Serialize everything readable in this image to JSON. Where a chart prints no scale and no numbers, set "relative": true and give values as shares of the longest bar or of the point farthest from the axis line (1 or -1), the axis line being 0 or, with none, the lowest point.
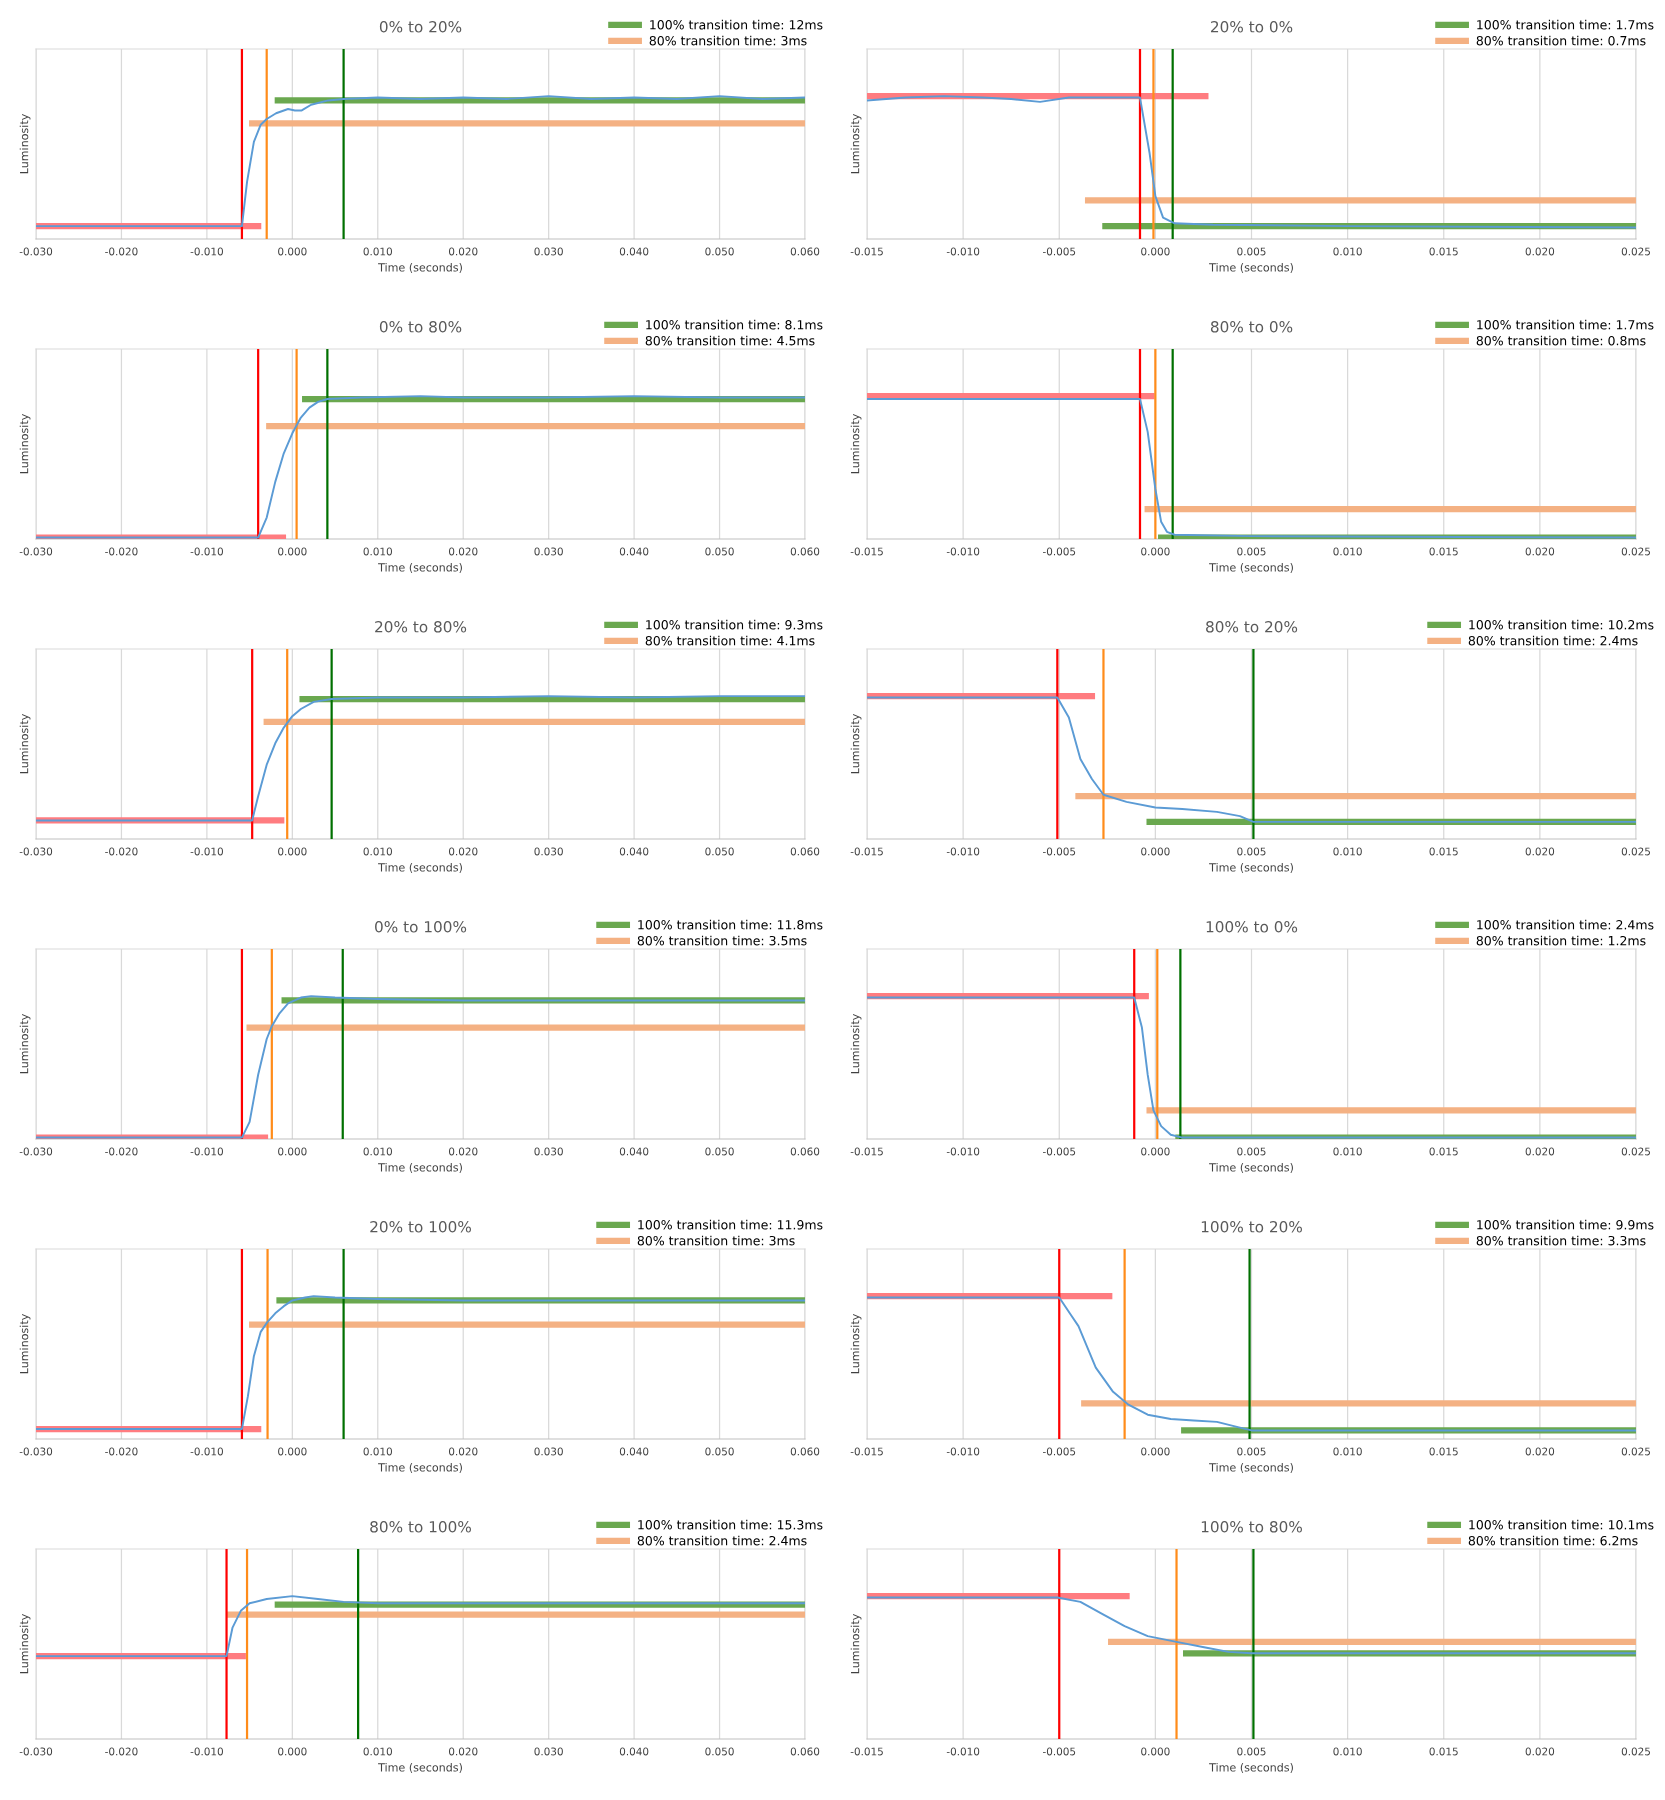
{
  "chart_data": [
    {
      "type": "line",
      "title": "0% to 20%",
      "xlabel": "Time (seconds)",
      "ylabel": "Luminosity",
      "relative": true,
      "grid": true,
      "legend": "top right",
      "xlim": [
        -0.03,
        0.06
      ],
      "xticks": [
        {
          "value": -0.03,
          "label": "-0.030"
        },
        {
          "value": -0.02,
          "label": "-0.020"
        },
        {
          "value": -0.01,
          "label": "-0.010"
        },
        {
          "value": 0,
          "label": "0.000"
        },
        {
          "value": 0.01,
          "label": "0.010"
        },
        {
          "value": 0.02,
          "label": "0.020"
        },
        {
          "value": 0.03,
          "label": "0.030"
        },
        {
          "value": 0.04,
          "label": "0.040"
        },
        {
          "value": 0.05,
          "label": "0.050"
        },
        {
          "value": 0.06,
          "label": "0.060"
        }
      ],
      "series": [
        {
          "color": "#ff7c80",
          "x": [
            -0.03,
            -0.004
          ],
          "values": [
            0.09,
            0.09
          ]
        },
        {
          "name": "100% transition time: 12ms",
          "color": "#6aa84f",
          "x": [
            -0.0017,
            0.06
          ],
          "values": [
            0.97,
            0.97
          ]
        },
        {
          "name": "80% transition time: 3ms",
          "color": "#f4b183",
          "x": [
            -0.0047,
            0.06
          ],
          "values": [
            0.81,
            0.81
          ]
        },
        {
          "color": "#5b9bd5",
          "x": [
            -0.03,
            -0.0059,
            -0.0053,
            -0.0045,
            -0.0037,
            -0.003,
            -0.0019,
            -0.0005,
            0.0003,
            0.0011,
            0.0022,
            0.0042,
            0.006,
            0.01,
            0.015,
            0.02,
            0.025,
            0.03,
            0.035,
            0.04,
            0.045,
            0.05,
            0.055,
            0.06
          ],
          "values": [
            0.09,
            0.09,
            0.4,
            0.68,
            0.8,
            0.84,
            0.88,
            0.91,
            0.9,
            0.9,
            0.94,
            0.97,
            0.98,
            0.99,
            0.98,
            0.99,
            0.98,
            1.0,
            0.98,
            0.99,
            0.98,
            1.0,
            0.98,
            0.99
          ]
        }
      ],
      "ref_lines": [
        {
          "axis": "x",
          "value": -0.0059,
          "color": "#ff0000"
        },
        {
          "axis": "x",
          "value": -0.003,
          "color": "#ff8c1a"
        },
        {
          "axis": "x",
          "value": 0.006,
          "color": "#007000"
        }
      ]
    },
    {
      "type": "line",
      "title": "20% to 0%",
      "xlabel": "Time (seconds)",
      "ylabel": "Luminosity",
      "relative": true,
      "grid": true,
      "legend": "top right",
      "xlim": [
        -0.015,
        0.025
      ],
      "xticks": [
        {
          "value": -0.015,
          "label": "-0.015"
        },
        {
          "value": -0.01,
          "label": "-0.010"
        },
        {
          "value": -0.005,
          "label": "-0.005"
        },
        {
          "value": 0,
          "label": "0.000"
        },
        {
          "value": 0.005,
          "label": "0.005"
        },
        {
          "value": 0.01,
          "label": "0.010"
        },
        {
          "value": 0.015,
          "label": "0.015"
        },
        {
          "value": 0.02,
          "label": "0.020"
        },
        {
          "value": 0.025,
          "label": "0.025"
        }
      ],
      "series": [
        {
          "color": "#ff7c80",
          "x": [
            -0.015,
            0.0026
          ],
          "values": [
            1.0,
            1.0
          ]
        },
        {
          "name": "100% transition time: 1.7ms",
          "color": "#6aa84f",
          "x": [
            -0.0026,
            0.025
          ],
          "values": [
            0.09,
            0.09
          ]
        },
        {
          "name": "80% transition time: 0.7ms",
          "color": "#f4b183",
          "x": [
            -0.0035,
            0.025
          ],
          "values": [
            0.27,
            0.27
          ]
        },
        {
          "color": "#5b9bd5",
          "x": [
            -0.015,
            -0.013,
            -0.011,
            -0.009,
            -0.0075,
            -0.006,
            -0.0045,
            -0.003,
            -0.0008,
            -0.0003,
            0.0,
            0.0004,
            0.001,
            0.003,
            0.01,
            0.025
          ],
          "values": [
            0.97,
            0.99,
            1.0,
            0.99,
            0.98,
            0.96,
            0.99,
            0.99,
            0.99,
            0.6,
            0.3,
            0.15,
            0.11,
            0.1,
            0.09,
            0.08
          ]
        }
      ],
      "ref_lines": [
        {
          "axis": "x",
          "value": -0.0008,
          "color": "#ff0000"
        },
        {
          "axis": "x",
          "value": -0.0001,
          "color": "#ff8c1a"
        },
        {
          "axis": "x",
          "value": 0.0009,
          "color": "#007000"
        }
      ]
    },
    {
      "type": "line",
      "title": "0% to 80%",
      "xlabel": "Time (seconds)",
      "ylabel": "Luminosity",
      "relative": true,
      "grid": true,
      "legend": "top right",
      "xlim": [
        -0.03,
        0.06
      ],
      "xticks": [
        {
          "value": -0.03,
          "label": "-0.030"
        },
        {
          "value": -0.02,
          "label": "-0.020"
        },
        {
          "value": -0.01,
          "label": "-0.010"
        },
        {
          "value": 0,
          "label": "0.000"
        },
        {
          "value": 0.01,
          "label": "0.010"
        },
        {
          "value": 0.02,
          "label": "0.020"
        },
        {
          "value": 0.03,
          "label": "0.030"
        },
        {
          "value": 0.04,
          "label": "0.040"
        },
        {
          "value": 0.05,
          "label": "0.050"
        },
        {
          "value": 0.06,
          "label": "0.060"
        }
      ],
      "series": [
        {
          "color": "#ff7c80",
          "x": [
            -0.03,
            -0.0011
          ],
          "values": [
            0.01,
            0.01
          ]
        },
        {
          "name": "100% transition time: 8.1ms",
          "color": "#6aa84f",
          "x": [
            0.0015,
            0.06
          ],
          "values": [
            0.98,
            0.98
          ]
        },
        {
          "name": "80% transition time: 4.5ms",
          "color": "#f4b183",
          "x": [
            -0.0027,
            0.06
          ],
          "values": [
            0.79,
            0.79
          ]
        },
        {
          "color": "#5b9bd5",
          "x": [
            -0.03,
            -0.004,
            -0.003,
            -0.002,
            -0.001,
            0.0,
            0.001,
            0.002,
            0.003,
            0.0041,
            0.008,
            0.015,
            0.02,
            0.03,
            0.04,
            0.05,
            0.06
          ],
          "values": [
            0.01,
            0.01,
            0.15,
            0.4,
            0.6,
            0.74,
            0.85,
            0.92,
            0.96,
            0.98,
            0.99,
            1.0,
            0.99,
            0.99,
            1.0,
            0.99,
            0.99
          ]
        }
      ],
      "ref_lines": [
        {
          "axis": "x",
          "value": -0.004,
          "color": "#ff0000"
        },
        {
          "axis": "x",
          "value": 0.0005,
          "color": "#ff8c1a"
        },
        {
          "axis": "x",
          "value": 0.0041,
          "color": "#007000"
        }
      ]
    },
    {
      "type": "line",
      "title": "80% to 0%",
      "xlabel": "Time (seconds)",
      "ylabel": "Luminosity",
      "relative": true,
      "grid": true,
      "legend": "top right",
      "xlim": [
        -0.015,
        0.025
      ],
      "xticks": [
        {
          "value": -0.015,
          "label": "-0.015"
        },
        {
          "value": -0.01,
          "label": "-0.010"
        },
        {
          "value": -0.005,
          "label": "-0.005"
        },
        {
          "value": 0,
          "label": "0.000"
        },
        {
          "value": 0.005,
          "label": "0.005"
        },
        {
          "value": 0.01,
          "label": "0.010"
        },
        {
          "value": 0.015,
          "label": "0.015"
        },
        {
          "value": 0.02,
          "label": "0.020"
        },
        {
          "value": 0.025,
          "label": "0.025"
        }
      ],
      "series": [
        {
          "color": "#ff7c80",
          "x": [
            -0.015,
            -0.0002
          ],
          "values": [
            1.0,
            1.0
          ]
        },
        {
          "name": "100% transition time: 1.7ms",
          "color": "#6aa84f",
          "x": [
            0.0003,
            0.025
          ],
          "values": [
            0.01,
            0.01
          ]
        },
        {
          "name": "80% transition time: 0.8ms",
          "color": "#f4b183",
          "x": [
            -0.0004,
            0.025
          ],
          "values": [
            0.21,
            0.21
          ]
        },
        {
          "color": "#5b9bd5",
          "x": [
            -0.015,
            -0.01,
            -0.005,
            -0.0008,
            -0.0004,
            0.0,
            0.0003,
            0.0006,
            0.001,
            0.005,
            0.025
          ],
          "values": [
            0.98,
            0.98,
            0.98,
            0.98,
            0.75,
            0.35,
            0.12,
            0.05,
            0.03,
            0.02,
            0.01
          ]
        }
      ],
      "ref_lines": [
        {
          "axis": "x",
          "value": -0.0008,
          "color": "#ff0000"
        },
        {
          "axis": "x",
          "value": 0.0,
          "color": "#ff8c1a"
        },
        {
          "axis": "x",
          "value": 0.0009,
          "color": "#007000"
        }
      ]
    },
    {
      "type": "line",
      "title": "20% to 80%",
      "xlabel": "Time (seconds)",
      "ylabel": "Luminosity",
      "relative": true,
      "grid": true,
      "legend": "top right",
      "xlim": [
        -0.03,
        0.06
      ],
      "xticks": [
        {
          "value": -0.03,
          "label": "-0.030"
        },
        {
          "value": -0.02,
          "label": "-0.020"
        },
        {
          "value": -0.01,
          "label": "-0.010"
        },
        {
          "value": 0,
          "label": "0.000"
        },
        {
          "value": 0.01,
          "label": "0.010"
        },
        {
          "value": 0.02,
          "label": "0.020"
        },
        {
          "value": 0.03,
          "label": "0.030"
        },
        {
          "value": 0.04,
          "label": "0.040"
        },
        {
          "value": 0.05,
          "label": "0.050"
        },
        {
          "value": 0.06,
          "label": "0.060"
        }
      ],
      "series": [
        {
          "color": "#ff7c80",
          "x": [
            -0.03,
            -0.0013
          ],
          "values": [
            0.13,
            0.13
          ]
        },
        {
          "name": "100% transition time: 9.3ms",
          "color": "#6aa84f",
          "x": [
            0.0012,
            0.06
          ],
          "values": [
            0.98,
            0.98
          ]
        },
        {
          "name": "80% transition time: 4.1ms",
          "color": "#f4b183",
          "x": [
            -0.003,
            0.06
          ],
          "values": [
            0.82,
            0.82
          ]
        },
        {
          "color": "#5b9bd5",
          "x": [
            -0.03,
            -0.0047,
            -0.004,
            -0.003,
            -0.002,
            -0.001,
            0.0,
            0.001,
            0.0025,
            0.0046,
            0.01,
            0.02,
            0.03,
            0.04,
            0.05,
            0.06
          ],
          "values": [
            0.13,
            0.13,
            0.3,
            0.52,
            0.67,
            0.78,
            0.86,
            0.91,
            0.96,
            0.98,
            0.99,
            0.99,
            1.0,
            0.99,
            1.0,
            1.0
          ]
        }
      ],
      "ref_lines": [
        {
          "axis": "x",
          "value": -0.0047,
          "color": "#ff0000"
        },
        {
          "axis": "x",
          "value": -0.0006,
          "color": "#ff8c1a"
        },
        {
          "axis": "x",
          "value": 0.0046,
          "color": "#007000"
        }
      ]
    },
    {
      "type": "line",
      "title": "80% to 20%",
      "xlabel": "Time (seconds)",
      "ylabel": "Luminosity",
      "relative": true,
      "grid": true,
      "legend": "top right",
      "xlim": [
        -0.015,
        0.025
      ],
      "xticks": [
        {
          "value": -0.015,
          "label": "-0.015"
        },
        {
          "value": -0.01,
          "label": "-0.010"
        },
        {
          "value": -0.005,
          "label": "-0.005"
        },
        {
          "value": 0,
          "label": "0.000"
        },
        {
          "value": 0.005,
          "label": "0.005"
        },
        {
          "value": 0.01,
          "label": "0.010"
        },
        {
          "value": 0.015,
          "label": "0.015"
        },
        {
          "value": 0.02,
          "label": "0.020"
        },
        {
          "value": 0.025,
          "label": "0.025"
        }
      ],
      "series": [
        {
          "color": "#ff7c80",
          "x": [
            -0.015,
            -0.0033
          ],
          "values": [
            1.0,
            1.0
          ]
        },
        {
          "name": "100% transition time: 10.2ms",
          "color": "#6aa84f",
          "x": [
            -0.0003,
            0.025
          ],
          "values": [
            0.12,
            0.12
          ]
        },
        {
          "name": "80% transition time: 2.4ms",
          "color": "#f4b183",
          "x": [
            -0.004,
            0.025
          ],
          "values": [
            0.3,
            0.3
          ]
        },
        {
          "color": "#5b9bd5",
          "x": [
            -0.015,
            -0.01,
            -0.0051,
            -0.0045,
            -0.0039,
            -0.0033,
            -0.0027,
            -0.0015,
            0.0,
            0.0014,
            0.0032,
            0.0044,
            0.0051,
            0.01,
            0.025
          ],
          "values": [
            0.99,
            0.99,
            0.99,
            0.85,
            0.56,
            0.42,
            0.31,
            0.26,
            0.22,
            0.21,
            0.19,
            0.16,
            0.12,
            0.12,
            0.12
          ]
        }
      ],
      "ref_lines": [
        {
          "axis": "x",
          "value": -0.0051,
          "color": "#ff0000"
        },
        {
          "axis": "x",
          "value": -0.0027,
          "color": "#ff8c1a"
        },
        {
          "axis": "x",
          "value": 0.0051,
          "color": "#007000"
        }
      ]
    },
    {
      "type": "line",
      "title": "0% to 100%",
      "xlabel": "Time (seconds)",
      "ylabel": "Luminosity",
      "relative": true,
      "grid": true,
      "legend": "top right",
      "xlim": [
        -0.03,
        0.06
      ],
      "xticks": [
        {
          "value": -0.03,
          "label": "-0.030"
        },
        {
          "value": -0.02,
          "label": "-0.020"
        },
        {
          "value": -0.01,
          "label": "-0.010"
        },
        {
          "value": 0,
          "label": "0.000"
        },
        {
          "value": 0.01,
          "label": "0.010"
        },
        {
          "value": 0.02,
          "label": "0.020"
        },
        {
          "value": 0.03,
          "label": "0.030"
        },
        {
          "value": 0.04,
          "label": "0.040"
        },
        {
          "value": 0.05,
          "label": "0.050"
        },
        {
          "value": 0.06,
          "label": "0.060"
        }
      ],
      "series": [
        {
          "color": "#ff7c80",
          "x": [
            -0.03,
            -0.0032
          ],
          "values": [
            0.01,
            0.01
          ]
        },
        {
          "name": "100% transition time: 11.8ms",
          "color": "#6aa84f",
          "x": [
            -0.0009,
            0.06
          ],
          "values": [
            0.97,
            0.97
          ]
        },
        {
          "name": "80% transition time: 3.5ms",
          "color": "#f4b183",
          "x": [
            -0.005,
            0.06
          ],
          "values": [
            0.78,
            0.78
          ]
        },
        {
          "color": "#5b9bd5",
          "x": [
            -0.03,
            -0.0059,
            -0.005,
            -0.004,
            -0.003,
            -0.0024,
            -0.0015,
            -0.0005,
            0.001,
            0.0022,
            0.005,
            0.01,
            0.02,
            0.03,
            0.04,
            0.05,
            0.06
          ],
          "values": [
            0.01,
            0.01,
            0.12,
            0.45,
            0.7,
            0.79,
            0.88,
            0.95,
            0.99,
            1.0,
            0.99,
            0.98,
            0.97,
            0.97,
            0.97,
            0.97,
            0.97
          ]
        }
      ],
      "ref_lines": [
        {
          "axis": "x",
          "value": -0.0059,
          "color": "#ff0000"
        },
        {
          "axis": "x",
          "value": -0.0024,
          "color": "#ff8c1a"
        },
        {
          "axis": "x",
          "value": 0.0059,
          "color": "#007000"
        }
      ]
    },
    {
      "type": "line",
      "title": "100% to 0%",
      "xlabel": "Time (seconds)",
      "ylabel": "Luminosity",
      "relative": true,
      "grid": true,
      "legend": "top right",
      "xlim": [
        -0.015,
        0.025
      ],
      "xticks": [
        {
          "value": -0.015,
          "label": "-0.015"
        },
        {
          "value": -0.01,
          "label": "-0.010"
        },
        {
          "value": -0.005,
          "label": "-0.005"
        },
        {
          "value": 0,
          "label": "0.000"
        },
        {
          "value": 0.005,
          "label": "0.005"
        },
        {
          "value": 0.01,
          "label": "0.010"
        },
        {
          "value": 0.015,
          "label": "0.015"
        },
        {
          "value": 0.02,
          "label": "0.020"
        },
        {
          "value": 0.025,
          "label": "0.025"
        }
      ],
      "series": [
        {
          "color": "#ff7c80",
          "x": [
            -0.015,
            -0.0005
          ],
          "values": [
            1.0,
            1.0
          ]
        },
        {
          "name": "100% transition time: 2.4ms",
          "color": "#6aa84f",
          "x": [
            0.0012,
            0.025
          ],
          "values": [
            0.01,
            0.01
          ]
        },
        {
          "name": "80% transition time: 1.2ms",
          "color": "#f4b183",
          "x": [
            -0.0003,
            0.025
          ],
          "values": [
            0.2,
            0.2
          ]
        },
        {
          "color": "#5b9bd5",
          "x": [
            -0.015,
            -0.005,
            -0.0011,
            -0.0007,
            -0.0004,
            -0.0001,
            0.0003,
            0.0008,
            0.0014,
            0.005,
            0.025
          ],
          "values": [
            0.99,
            0.99,
            0.99,
            0.78,
            0.45,
            0.2,
            0.09,
            0.03,
            0.01,
            0.01,
            0.01
          ]
        }
      ],
      "ref_lines": [
        {
          "axis": "x",
          "value": -0.0011,
          "color": "#ff0000"
        },
        {
          "axis": "x",
          "value": 0.0001,
          "color": "#ff8c1a"
        },
        {
          "axis": "x",
          "value": 0.0013,
          "color": "#007000"
        }
      ]
    },
    {
      "type": "line",
      "title": "20% to 100%",
      "xlabel": "Time (seconds)",
      "ylabel": "Luminosity",
      "relative": true,
      "grid": true,
      "legend": "top right",
      "xlim": [
        -0.03,
        0.06
      ],
      "xticks": [
        {
          "value": -0.03,
          "label": "-0.030"
        },
        {
          "value": -0.02,
          "label": "-0.020"
        },
        {
          "value": -0.01,
          "label": "-0.010"
        },
        {
          "value": 0,
          "label": "0.000"
        },
        {
          "value": 0.01,
          "label": "0.010"
        },
        {
          "value": 0.02,
          "label": "0.020"
        },
        {
          "value": 0.03,
          "label": "0.030"
        },
        {
          "value": 0.04,
          "label": "0.040"
        },
        {
          "value": 0.05,
          "label": "0.050"
        },
        {
          "value": 0.06,
          "label": "0.060"
        }
      ],
      "series": [
        {
          "color": "#ff7c80",
          "x": [
            -0.03,
            -0.004
          ],
          "values": [
            0.07,
            0.07
          ]
        },
        {
          "name": "100% transition time: 11.9ms",
          "color": "#6aa84f",
          "x": [
            -0.0015,
            0.06
          ],
          "values": [
            0.97,
            0.97
          ]
        },
        {
          "name": "80% transition time: 3ms",
          "color": "#f4b183",
          "x": [
            -0.0047,
            0.06
          ],
          "values": [
            0.8,
            0.8
          ]
        },
        {
          "color": "#5b9bd5",
          "x": [
            -0.03,
            -0.0059,
            -0.0052,
            -0.0045,
            -0.0037,
            -0.0029,
            -0.002,
            -0.001,
            0.0,
            0.0015,
            0.0025,
            0.005,
            0.01,
            0.02,
            0.03,
            0.04,
            0.05,
            0.06
          ],
          "values": [
            0.07,
            0.07,
            0.3,
            0.58,
            0.75,
            0.82,
            0.88,
            0.93,
            0.97,
            0.99,
            1.0,
            0.99,
            0.98,
            0.97,
            0.97,
            0.97,
            0.97,
            0.97
          ]
        }
      ],
      "ref_lines": [
        {
          "axis": "x",
          "value": -0.0059,
          "color": "#ff0000"
        },
        {
          "axis": "x",
          "value": -0.0029,
          "color": "#ff8c1a"
        },
        {
          "axis": "x",
          "value": 0.006,
          "color": "#007000"
        }
      ]
    },
    {
      "type": "line",
      "title": "100% to 20%",
      "xlabel": "Time (seconds)",
      "ylabel": "Luminosity",
      "relative": true,
      "grid": true,
      "legend": "top right",
      "xlim": [
        -0.015,
        0.025
      ],
      "xticks": [
        {
          "value": -0.015,
          "label": "-0.015"
        },
        {
          "value": -0.01,
          "label": "-0.010"
        },
        {
          "value": -0.005,
          "label": "-0.005"
        },
        {
          "value": 0,
          "label": "0.000"
        },
        {
          "value": 0.005,
          "label": "0.005"
        },
        {
          "value": 0.01,
          "label": "0.010"
        },
        {
          "value": 0.015,
          "label": "0.015"
        },
        {
          "value": 0.02,
          "label": "0.020"
        },
        {
          "value": 0.025,
          "label": "0.025"
        }
      ],
      "series": [
        {
          "color": "#ff7c80",
          "x": [
            -0.015,
            -0.0024
          ],
          "values": [
            1.0,
            1.0
          ]
        },
        {
          "name": "100% transition time: 9.9ms",
          "color": "#6aa84f",
          "x": [
            0.0015,
            0.025
          ],
          "values": [
            0.06,
            0.06
          ]
        },
        {
          "name": "80% transition time: 3.3ms",
          "color": "#f4b183",
          "x": [
            -0.0037,
            0.025
          ],
          "values": [
            0.25,
            0.25
          ]
        },
        {
          "color": "#5b9bd5",
          "x": [
            -0.015,
            -0.01,
            -0.005,
            -0.0044,
            -0.004,
            -0.0031,
            -0.0022,
            -0.0014,
            -0.0004,
            0.0008,
            0.002,
            0.0032,
            0.0044,
            0.005,
            0.01,
            0.025
          ],
          "values": [
            0.99,
            0.99,
            0.99,
            0.87,
            0.79,
            0.5,
            0.33,
            0.24,
            0.17,
            0.14,
            0.13,
            0.12,
            0.08,
            0.06,
            0.06,
            0.06
          ]
        }
      ],
      "ref_lines": [
        {
          "axis": "x",
          "value": -0.005,
          "color": "#ff0000"
        },
        {
          "axis": "x",
          "value": -0.0016,
          "color": "#ff8c1a"
        },
        {
          "axis": "x",
          "value": 0.0049,
          "color": "#007000"
        }
      ]
    },
    {
      "type": "line",
      "title": "80% to 100%",
      "xlabel": "Time (seconds)",
      "ylabel": "Luminosity",
      "relative": true,
      "grid": true,
      "legend": "top right",
      "xlim": [
        -0.03,
        0.06
      ],
      "xticks": [
        {
          "value": -0.03,
          "label": "-0.030"
        },
        {
          "value": -0.02,
          "label": "-0.020"
        },
        {
          "value": -0.01,
          "label": "-0.010"
        },
        {
          "value": 0,
          "label": "0.000"
        },
        {
          "value": 0.01,
          "label": "0.010"
        },
        {
          "value": 0.02,
          "label": "0.020"
        },
        {
          "value": 0.03,
          "label": "0.030"
        },
        {
          "value": 0.04,
          "label": "0.040"
        },
        {
          "value": 0.05,
          "label": "0.050"
        },
        {
          "value": 0.06,
          "label": "0.060"
        }
      ],
      "series": [
        {
          "color": "#ff7c80",
          "x": [
            -0.03,
            -0.0058
          ],
          "values": [
            0.58,
            0.58
          ]
        },
        {
          "name": "100% transition time: 15.3ms",
          "color": "#6aa84f",
          "x": [
            -0.0017,
            0.06
          ],
          "values": [
            0.94,
            0.94
          ]
        },
        {
          "name": "80% transition time: 2.4ms",
          "color": "#f4b183",
          "x": [
            -0.0073,
            0.06
          ],
          "values": [
            0.87,
            0.87
          ]
        },
        {
          "color": "#5b9bd5",
          "x": [
            -0.03,
            -0.0077,
            -0.007,
            -0.006,
            -0.005,
            -0.003,
            0.0,
            0.003,
            0.006,
            0.01,
            0.02,
            0.03,
            0.04,
            0.05,
            0.06
          ],
          "values": [
            0.58,
            0.58,
            0.78,
            0.9,
            0.95,
            0.98,
            1.0,
            0.98,
            0.96,
            0.95,
            0.95,
            0.95,
            0.95,
            0.95,
            0.95
          ]
        }
      ],
      "ref_lines": [
        {
          "axis": "x",
          "value": -0.0077,
          "color": "#ff0000"
        },
        {
          "axis": "x",
          "value": -0.0053,
          "color": "#ff8c1a"
        },
        {
          "axis": "x",
          "value": 0.0077,
          "color": "#007000"
        }
      ]
    },
    {
      "type": "line",
      "title": "100% to 80%",
      "xlabel": "Time (seconds)",
      "ylabel": "Luminosity",
      "relative": true,
      "grid": true,
      "legend": "top right",
      "xlim": [
        -0.015,
        0.025
      ],
      "xticks": [
        {
          "value": -0.015,
          "label": "-0.015"
        },
        {
          "value": -0.01,
          "label": "-0.010"
        },
        {
          "value": -0.005,
          "label": "-0.005"
        },
        {
          "value": 0,
          "label": "0.000"
        },
        {
          "value": 0.005,
          "label": "0.005"
        },
        {
          "value": 0.01,
          "label": "0.010"
        },
        {
          "value": 0.015,
          "label": "0.015"
        },
        {
          "value": 0.02,
          "label": "0.020"
        },
        {
          "value": 0.025,
          "label": "0.025"
        }
      ],
      "series": [
        {
          "color": "#ff7c80",
          "x": [
            -0.015,
            -0.0015
          ],
          "values": [
            1.0,
            1.0
          ]
        },
        {
          "name": "100% transition time: 10.1ms",
          "color": "#6aa84f",
          "x": [
            0.0016,
            0.025
          ],
          "values": [
            0.6,
            0.6
          ]
        },
        {
          "name": "80% transition time: 6.2ms",
          "color": "#f4b183",
          "x": [
            -0.0023,
            0.025
          ],
          "values": [
            0.68,
            0.68
          ]
        },
        {
          "color": "#5b9bd5",
          "x": [
            -0.015,
            -0.01,
            -0.0051,
            -0.0039,
            -0.0027,
            -0.0016,
            -0.0004,
            0.0011,
            0.0026,
            0.0038,
            0.005,
            0.01,
            0.025
          ],
          "values": [
            0.99,
            0.99,
            0.99,
            0.96,
            0.87,
            0.79,
            0.72,
            0.68,
            0.64,
            0.61,
            0.6,
            0.6,
            0.6
          ]
        }
      ],
      "ref_lines": [
        {
          "axis": "x",
          "value": -0.005,
          "color": "#ff0000"
        },
        {
          "axis": "x",
          "value": 0.0011,
          "color": "#ff8c1a"
        },
        {
          "axis": "x",
          "value": 0.0051,
          "color": "#007000"
        }
      ]
    }
  ]
}
